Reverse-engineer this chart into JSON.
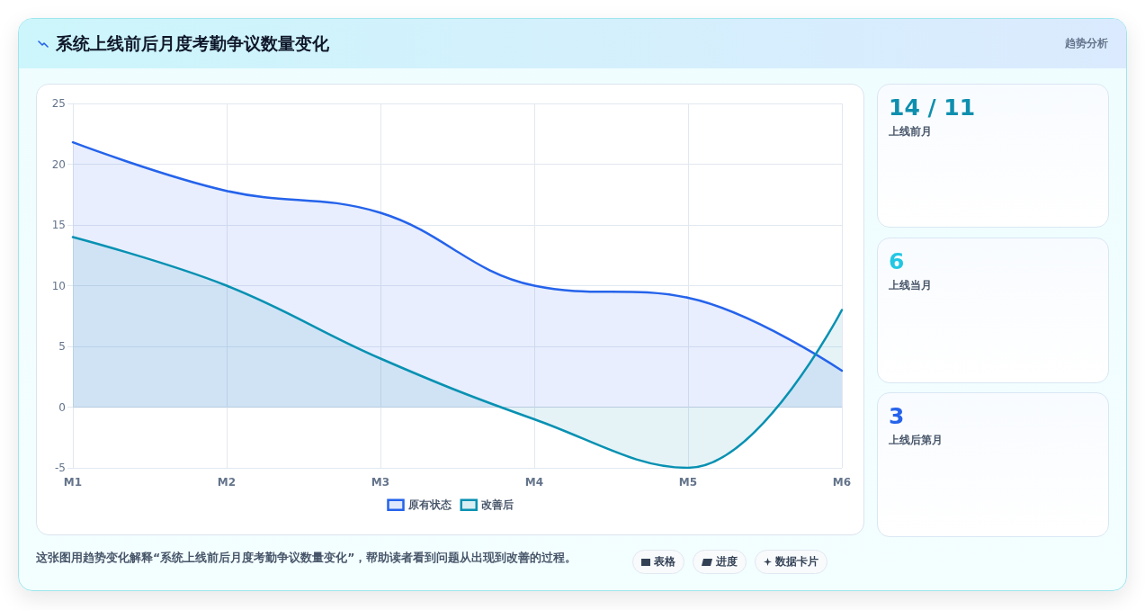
{
  "chart_data": [
    {
      "type": "area",
      "title": "系统上线前后月度考勤争议数量变化",
      "categories": [
        "M1",
        "M2",
        "M3",
        "M4",
        "M5",
        "M6"
      ],
      "series": [
        {
          "name": "原有状态",
          "color": "#2563eb",
          "values": [
            21.8,
            17.8,
            16,
            10,
            9,
            3
          ]
        },
        {
          "name": "改善后",
          "color": "#0891b2",
          "values": [
            14,
            10,
            4,
            -1,
            -5,
            8
          ]
        }
      ],
      "ylim": [
        -5,
        25
      ],
      "yticks": [
        -5,
        0,
        5,
        10,
        15,
        20,
        25
      ],
      "grid": true,
      "legend": "bottom",
      "marker": "none",
      "line_style": "solid",
      "annotations": [
        "这张图用趋势变化解释“系统上线前后月度考勤争议数量变化”，帮助读者看到问题从出现到改善的过程。",
        "表格",
        "进度",
        "数据卡片"
      ]
    },
    {
      "type": "other",
      "title": "14 / 11",
      "subtitle": "上线前月",
      "annotations": [
        "趋势分析"
      ]
    },
    {
      "type": "other",
      "title": "6",
      "subtitle": "上线当月"
    },
    {
      "type": "other",
      "title": "3",
      "subtitle": "上线后第月"
    }
  ]
}
